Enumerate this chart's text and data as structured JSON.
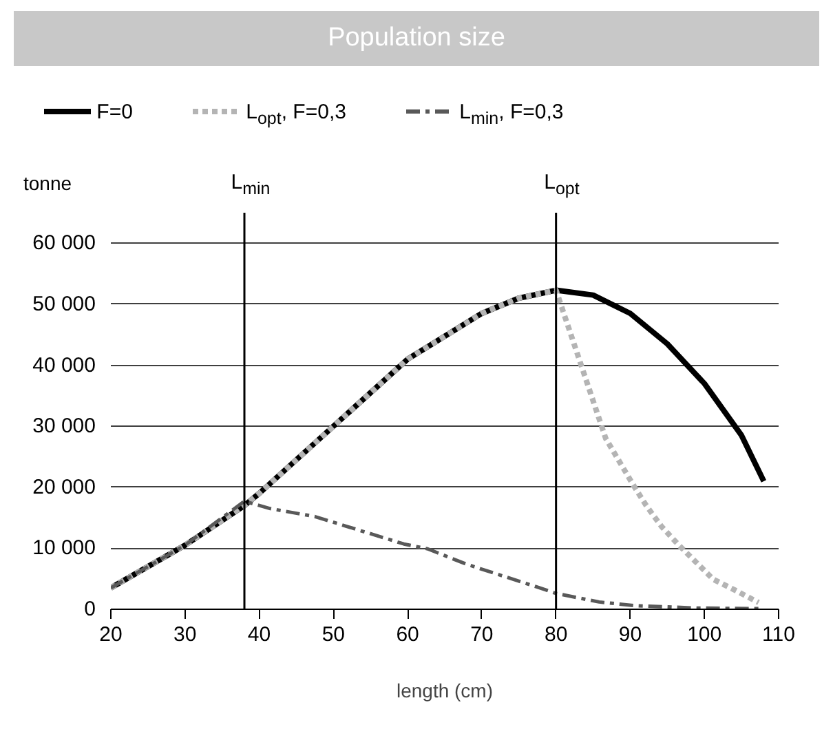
{
  "chart_data": {
    "type": "line",
    "title": "Population size",
    "xlabel": "length (cm)",
    "ylabel": "tonne",
    "xlim": [
      20,
      110
    ],
    "xticks": [
      20,
      30,
      40,
      50,
      60,
      70,
      80,
      90,
      100,
      110
    ],
    "ylim": [
      0,
      65000
    ],
    "yticks": [
      {
        "value": 0,
        "label": "0"
      },
      {
        "value": 10000,
        "label": "10 000"
      },
      {
        "value": 20000,
        "label": "20 000"
      },
      {
        "value": 30000,
        "label": "30 000"
      },
      {
        "value": 40000,
        "label": "40 000"
      },
      {
        "value": 50000,
        "label": "50 000"
      },
      {
        "value": 60000,
        "label": "60 000"
      }
    ],
    "grid": "y",
    "legend": "top",
    "marker": "none",
    "series": [
      {
        "name": "F=0",
        "color": "#000000",
        "line_style": "solid",
        "x": [
          20,
          30,
          38,
          40,
          50,
          60,
          70,
          75,
          80,
          85,
          90,
          95,
          100,
          105,
          108
        ],
        "values": [
          3500,
          10500,
          17000,
          19000,
          30000,
          41000,
          48500,
          51000,
          52300,
          51500,
          48500,
          43500,
          37000,
          28500,
          21000
        ]
      },
      {
        "name": "L$_{opt}$, F=0,3",
        "color": "#b4b4b4",
        "line_style": "dashed",
        "x": [
          20,
          30,
          38,
          40,
          50,
          60,
          70,
          75,
          80,
          86.7,
          90.3,
          92.1,
          94.2,
          96.4,
          101.2,
          104.5,
          107.3
        ],
        "values": [
          3500,
          10500,
          17000,
          19000,
          30000,
          41000,
          48500,
          51000,
          52300,
          28000,
          20600,
          17100,
          13600,
          10700,
          4900,
          2900,
          1100
        ]
      },
      {
        "name": "L$_{min}$, F=0,3",
        "color": "#595959",
        "line_style": "dashdot",
        "x": [
          20,
          30,
          38,
          41.5,
          47.5,
          59.5,
          62.7,
          67.9,
          77.3,
          80,
          85.8,
          90.6,
          99,
          107.3
        ],
        "values": [
          3500,
          10500,
          17700,
          16500,
          15200,
          10700,
          9900,
          7400,
          3700,
          2600,
          1200,
          600,
          200,
          100
        ]
      }
    ],
    "ref_lines": [
      {
        "axis": "x",
        "value": 38,
        "label": "L$_{min}$",
        "color": "#000000"
      },
      {
        "axis": "x",
        "value": 80,
        "label": "L$_{opt}$",
        "color": "#000000"
      }
    ]
  }
}
